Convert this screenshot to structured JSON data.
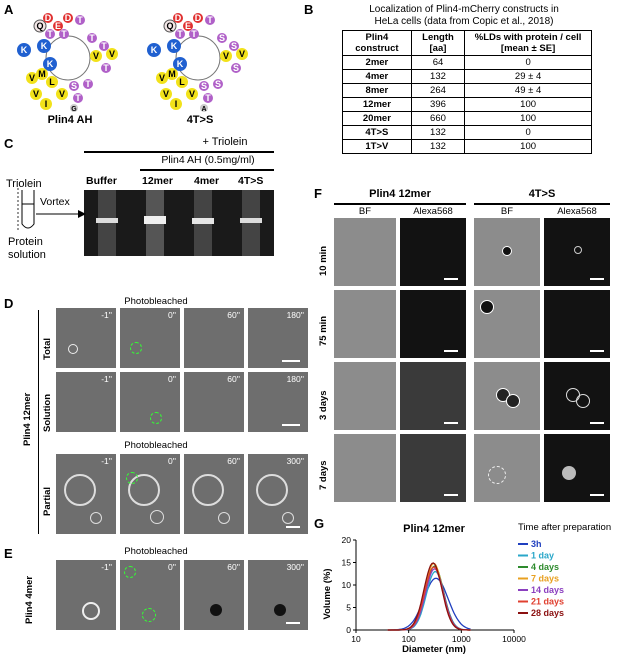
{
  "panels": {
    "A": {
      "label": "A",
      "wheel1_title": "Plin4 AH",
      "wheel2_title": "4T>S"
    },
    "B": {
      "label": "B",
      "title_line1": "Localization of Plin4-mCherry constructs in",
      "title_line2": "HeLa cells (data from Copic et al., 2018)",
      "headers": [
        "Plin4 construct",
        "Length [aa]",
        "%LDs with protein / cell [mean ± SE]"
      ],
      "rows": [
        [
          "2mer",
          "64",
          "0"
        ],
        [
          "4mer",
          "132",
          "29 ± 4"
        ],
        [
          "8mer",
          "264",
          "49 ± 4"
        ],
        [
          "12mer",
          "396",
          "100"
        ],
        [
          "20mer",
          "660",
          "100"
        ],
        [
          "4T>S",
          "132",
          "0"
        ],
        [
          "1T>V",
          "132",
          "100"
        ]
      ]
    },
    "C": {
      "label": "C",
      "header": "+ Triolein",
      "subheader": "Plin4 AH (0.5mg/ml)",
      "lanes": [
        "Buffer",
        "12mer",
        "4mer",
        "4T>S"
      ],
      "triolein": "Triolein",
      "vortex": "Vortex",
      "protein": "Protein",
      "solution": "solution"
    },
    "D": {
      "label": "D",
      "photobleached": "Photobleached",
      "side_label": "Plin4 12mer",
      "row_labels": [
        "Total",
        "Solution",
        "Partial"
      ],
      "times_row1": [
        "-1''",
        "0''",
        "60''",
        "180''"
      ],
      "times_row2": [
        "-1''",
        "0''",
        "60''",
        "180''"
      ],
      "times_row3": [
        "-1''",
        "0''",
        "60''",
        "300''"
      ]
    },
    "E": {
      "label": "E",
      "photobleached": "Photobleached",
      "side_label": "Plin4 4mer",
      "times": [
        "-1''",
        "0''",
        "60''",
        "300''"
      ]
    },
    "F": {
      "label": "F",
      "group1": "Plin4 12mer",
      "group2": "4T>S",
      "col_labels": [
        "BF",
        "Alexa568",
        "BF",
        "Alexa568"
      ],
      "row_labels": [
        "10 min",
        "75 min",
        "3 days",
        "7 days"
      ]
    },
    "G": {
      "label": "G"
    }
  },
  "chart_data": {
    "type": "line",
    "title": "Plin4 12mer",
    "xlabel": "Diameter (nm)",
    "ylabel": "Volume (%)",
    "xscale": "log",
    "xlim": [
      10,
      10000
    ],
    "ylim": [
      0,
      20
    ],
    "xticks": [
      "10",
      "100",
      "1000",
      "10000"
    ],
    "yticks": [
      "0",
      "5",
      "10",
      "15",
      "20"
    ],
    "legend_title": "Time after preparation",
    "legend_position": "right",
    "series": [
      {
        "name": "3h",
        "color": "#1f3fbf",
        "peak_x": 330,
        "peak_y": 11.5
      },
      {
        "name": "1 day",
        "color": "#2aa7c9",
        "peak_x": 320,
        "peak_y": 13.0
      },
      {
        "name": "4 days",
        "color": "#2e8b2e",
        "peak_x": 310,
        "peak_y": 14.2
      },
      {
        "name": "7 days",
        "color": "#e8a020",
        "peak_x": 300,
        "peak_y": 14.8
      },
      {
        "name": "14 days",
        "color": "#8b3fbf",
        "peak_x": 310,
        "peak_y": 13.6
      },
      {
        "name": "21 days",
        "color": "#e04030",
        "peak_x": 300,
        "peak_y": 14.0
      },
      {
        "name": "28 days",
        "color": "#8b1010",
        "peak_x": 290,
        "peak_y": 14.9
      }
    ]
  }
}
